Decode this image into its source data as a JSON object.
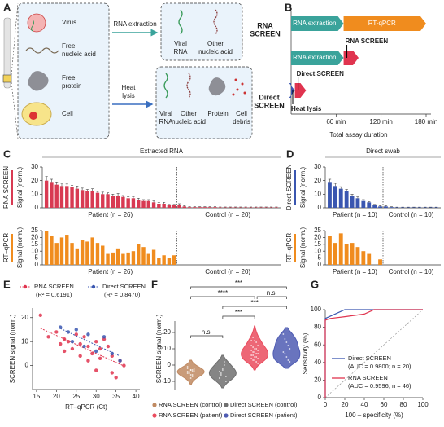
{
  "figure": {
    "panel_labels": [
      "A",
      "B",
      "C",
      "D",
      "E",
      "F",
      "G"
    ],
    "diagram_a": {
      "virus": "Virus",
      "free_nucleic_acid": [
        "Free",
        "nucleic acid"
      ],
      "free_protein": [
        "Free",
        "protein"
      ],
      "cell": "Cell",
      "rna_extraction": "RNA extraction",
      "viral_rna": [
        "Viral",
        "RNA"
      ],
      "other_nucleic_acid": [
        "Other",
        "nucleic acid"
      ],
      "rna_screen": [
        "RNA",
        "SCREEN"
      ],
      "heat_lysis": [
        "Heat",
        "lysis"
      ],
      "viral_rna_lysate": [
        "Viral",
        "RNA"
      ],
      "other_nucleic_acid_lysate": [
        "Other",
        "nucleic acid"
      ],
      "protein": "Protein",
      "cell_debris": [
        "Cell",
        "debris"
      ],
      "direct_screen": [
        "Direct",
        "SCREEN"
      ]
    }
  },
  "chart_data": [
    {
      "type": "timeline",
      "rows": [
        {
          "segments": [
            {
              "label": "RNA extraction",
              "start": 0,
              "end": 70,
              "color": "#3aa39b"
            },
            {
              "label": "RT-qPCR",
              "start": 70,
              "end": 180,
              "color": "#f08c1e"
            }
          ]
        },
        {
          "annotation": "RNA SCREEN",
          "segments": [
            {
              "label": "RNA extraction",
              "start": 0,
              "end": 70,
              "color": "#3aa39b"
            },
            {
              "start": 70,
              "end": 90,
              "color": "#e0344f"
            }
          ]
        },
        {
          "annotation": "Direct SCREEN",
          "below_label": "Heat lysis",
          "segments": [
            {
              "start": 0,
              "end": 5,
              "color": "#3a56b0"
            },
            {
              "start": 5,
              "end": 20,
              "color": "#e0344f"
            }
          ]
        }
      ],
      "xlim": [
        0,
        180
      ],
      "xticks": [
        {
          "value": 60,
          "label": "60 min"
        },
        {
          "value": 120,
          "label": "120 min"
        },
        {
          "value": 180,
          "label": "180 min"
        }
      ],
      "x_label": "Total assay duration"
    },
    {
      "type": "bar",
      "title": "Extracted RNA",
      "side_label": "RNA SCREEN",
      "y_label": "Signal (norm.)",
      "series": [
        {
          "name": "Patient (n = 26)",
          "color": "#d83a52",
          "values": [
            20,
            19,
            17,
            16,
            16,
            15,
            14,
            13,
            12,
            12,
            11,
            10,
            10,
            9,
            9,
            8,
            7,
            7,
            6,
            5,
            5,
            4,
            3,
            3,
            2,
            2
          ],
          "errors": [
            3,
            2,
            2,
            2,
            1.5,
            1.5,
            2,
            1.5,
            1.5,
            2,
            1,
            1.5,
            1,
            1,
            1.5,
            1,
            1,
            1,
            1,
            1,
            1,
            1,
            1,
            1,
            0.5,
            0.5
          ]
        },
        {
          "name": "Control (n = 20)",
          "color": "#d83a52",
          "values": [
            2,
            1,
            0.5,
            0.5,
            0.5,
            0.5,
            0.5,
            0.5,
            0.3,
            0.3,
            0.3,
            0.3,
            0.3,
            0.3,
            0.3,
            0.3,
            0.3,
            0.3,
            0.3,
            0.3
          ],
          "errors": [
            1,
            0.5,
            0.3,
            0.3,
            0.3,
            0.3,
            0.3,
            0.3,
            0.3,
            0.3,
            0.3,
            0.3,
            0.3,
            0.3,
            0.3,
            0.3,
            0.3,
            0.3,
            0.3,
            0.3
          ]
        }
      ],
      "ylim": [
        0,
        30
      ],
      "yticks": [
        0,
        10,
        20,
        30
      ]
    },
    {
      "type": "bar",
      "side_label": "RT–qPCR",
      "y_label": "Signal (norm.)",
      "series": [
        {
          "name": "Patient (n = 26)",
          "color": "#f08c1e",
          "values": [
            25,
            21,
            16,
            20,
            22,
            16,
            12,
            18,
            17,
            20,
            16,
            14,
            8,
            9,
            12,
            8,
            9,
            10,
            15,
            13,
            8,
            11,
            5,
            7,
            5,
            7
          ]
        },
        {
          "name": "Control (n = 20)",
          "color": "#f08c1e",
          "values": [
            0,
            0,
            0,
            0,
            0,
            0,
            0,
            0,
            0,
            0,
            0,
            0,
            0,
            0,
            0,
            0,
            0,
            0,
            0,
            0
          ]
        }
      ],
      "ylim": [
        0,
        25
      ],
      "yticks": [
        0,
        5,
        10,
        15,
        20,
        25
      ]
    },
    {
      "type": "bar",
      "title": "Direct swab",
      "side_label": "Direct SCREEN",
      "y_label": "Signal (norm.)",
      "series": [
        {
          "name": "Patient (n = 10)",
          "color": "#3a56b0",
          "values": [
            19,
            16,
            14,
            12,
            9,
            7,
            5,
            4,
            2,
            1
          ],
          "errors": [
            2,
            2,
            1.5,
            1.5,
            1,
            1,
            1,
            0.5,
            0.5,
            0.5
          ]
        },
        {
          "name": "Control (n = 10)",
          "color": "#3a56b0",
          "values": [
            1,
            0.5,
            0.3,
            0.3,
            0.3,
            0.3,
            0.3,
            0.3,
            0.3,
            0.3
          ],
          "errors": [
            0.5,
            0.3,
            0.2,
            0.2,
            0.2,
            0.2,
            0.2,
            0.2,
            0.2,
            0.2
          ]
        }
      ],
      "ylim": [
        0,
        30
      ],
      "yticks": [
        0,
        10,
        20,
        30
      ]
    },
    {
      "type": "bar",
      "side_label": "RT–qPCR",
      "y_label": "Signal (norm.)",
      "series": [
        {
          "name": "Patient (n = 10)",
          "color": "#f08c1e",
          "values": [
            21,
            16,
            23,
            15,
            16,
            13,
            10,
            8,
            0,
            4
          ]
        },
        {
          "name": "Control (n = 10)",
          "color": "#f08c1e",
          "values": [
            0,
            0,
            0,
            0,
            0,
            0,
            0,
            0,
            0,
            0
          ]
        }
      ],
      "ylim": [
        0,
        25
      ],
      "yticks": [
        0,
        5,
        10,
        15,
        20,
        25
      ]
    },
    {
      "type": "scatter",
      "x_label": "RT–qPCR (Ct)",
      "y_label": "SCREEN signal (norm.)",
      "series": [
        {
          "name": "RNA SCREEN",
          "note": "(R² = 0.6191)",
          "color": "#e0344f",
          "x": [
            16,
            18,
            20,
            21,
            22,
            22,
            23,
            24,
            25,
            26,
            26,
            27,
            28,
            28,
            29,
            30,
            30,
            31,
            31,
            32,
            33,
            34,
            34,
            35,
            36,
            37
          ],
          "y": [
            21,
            12,
            14,
            9,
            11,
            6,
            10,
            7,
            13,
            9,
            4,
            12,
            2,
            8,
            5,
            10,
            -2,
            3,
            7,
            11,
            8,
            4,
            -3,
            -5,
            2,
            0
          ]
        },
        {
          "name": "Direct SCREEN",
          "note": "(R² = 0.8470)",
          "color": "#3a56b0",
          "x": [
            21,
            23,
            24,
            25,
            27,
            28,
            30,
            32,
            34,
            36
          ],
          "y": [
            16,
            14,
            10,
            15,
            8,
            13,
            6,
            12,
            5,
            2
          ]
        }
      ],
      "xlim": [
        14,
        41
      ],
      "xticks": [
        15,
        20,
        25,
        30,
        35,
        40
      ],
      "ylim": [
        -10,
        24
      ],
      "yticks": [
        0,
        10,
        20
      ]
    },
    {
      "type": "violin",
      "y_label": "SCREEN signal (norm.)",
      "series": [
        {
          "name": "RNA SCREEN (control)",
          "color": "#c08a62",
          "values": [
            -5,
            -4,
            -3,
            -6,
            -2,
            -4,
            -5,
            -3,
            -7,
            -4,
            -1,
            -5,
            -6,
            -3,
            -4,
            -2,
            -5,
            -8,
            -4,
            -3
          ]
        },
        {
          "name": "Direct SCREEN (control)",
          "color": "#707070",
          "values": [
            -8,
            -5,
            -2,
            0,
            -10,
            -4,
            -6,
            -3,
            2,
            -7
          ]
        },
        {
          "name": "RNA SCREEN (patient)",
          "color": "#ea4c5e",
          "values": [
            20,
            17,
            15,
            14,
            12,
            12,
            11,
            10,
            10,
            9,
            9,
            8,
            8,
            7,
            7,
            6,
            6,
            5,
            5,
            4,
            4,
            3,
            3,
            2,
            1,
            15
          ]
        },
        {
          "name": "Direct SCREEN (patient)",
          "color": "#4f5cb3",
          "values": [
            19,
            16,
            14,
            12,
            10,
            8,
            7,
            5,
            3,
            2
          ]
        }
      ],
      "significance": [
        "***",
        "****",
        "n.s.",
        "***",
        "***",
        "n.s."
      ],
      "ylim": [
        -15,
        25
      ],
      "yticks": [
        -10,
        0,
        10,
        20
      ]
    },
    {
      "type": "line",
      "x_label": "100 – specificity (%)",
      "y_label": "Sensitivity (%)",
      "series": [
        {
          "name": "Direct SCREEN",
          "note": "(AUC = 0.9800; n = 20)",
          "color": "#3a56b0",
          "x": [
            0,
            0,
            20,
            100
          ],
          "y": [
            0,
            90,
            100,
            100
          ]
        },
        {
          "name": "RNA SCREEN",
          "note": "(AUC = 0.9596; n = 46)",
          "color": "#e0344f",
          "x": [
            0,
            0,
            5,
            20,
            40,
            50,
            100
          ],
          "y": [
            0,
            88,
            90,
            92,
            95,
            100,
            100
          ]
        }
      ],
      "xlim": [
        0,
        100
      ],
      "xticks": [
        0,
        20,
        40,
        60,
        80,
        100
      ],
      "ylim": [
        0,
        100
      ],
      "yticks": [
        0,
        20,
        40,
        60,
        80,
        100
      ]
    }
  ]
}
